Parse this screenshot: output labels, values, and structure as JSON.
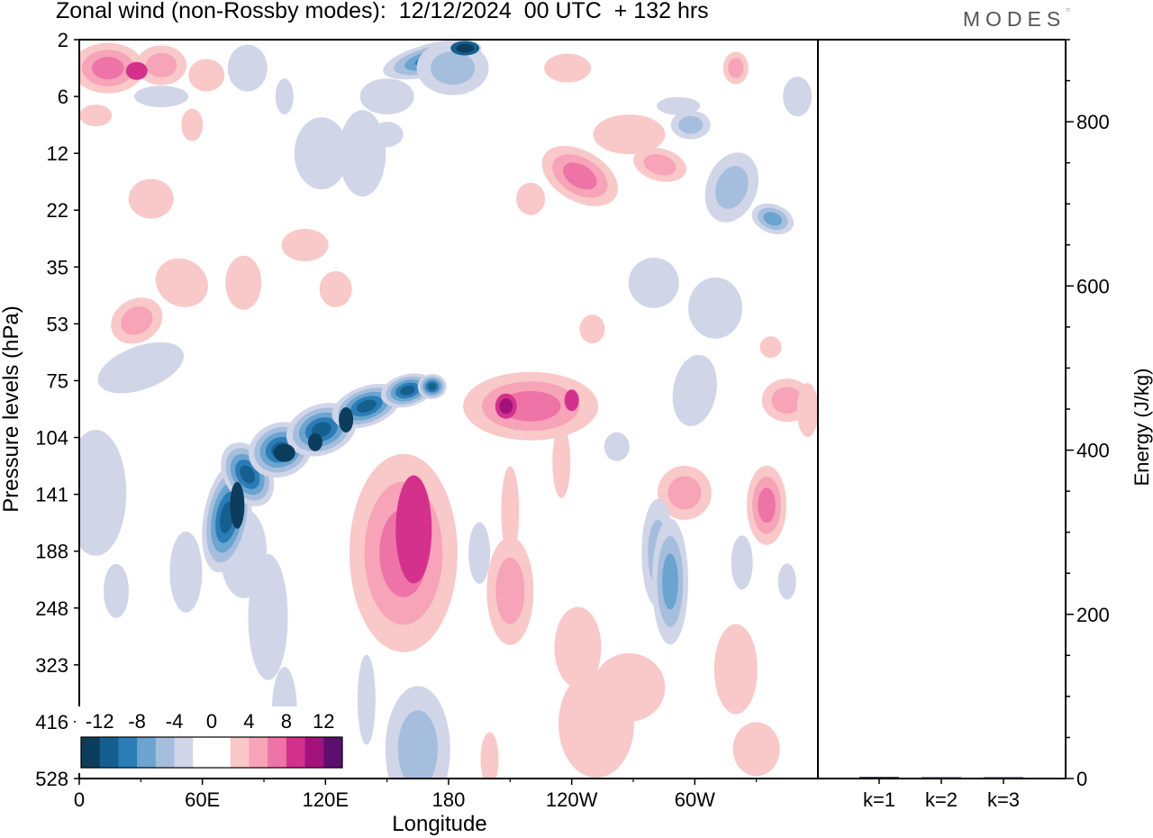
{
  "title": "Zonal wind (non-Rossby modes):  12/12/2024  00 UTC  + 132 hrs",
  "brand": "MODES",
  "chart_data": [
    {
      "type": "heatmap",
      "xlabel": "Longitude",
      "ylabel": "Pressure levels (hPa)",
      "x_ticks": [
        "0",
        "60E",
        "120E",
        "180",
        "120W",
        "60W"
      ],
      "x_tick_degrees": [
        0,
        60,
        120,
        180,
        240,
        300
      ],
      "xlim": [
        0,
        360
      ],
      "y_ticks": [
        "2",
        "6",
        "12",
        "22",
        "35",
        "53",
        "75",
        "104",
        "141",
        "188",
        "248",
        "323",
        "416",
        "528"
      ],
      "y_scale": "pressure levels, inverted (2 hPa top, 528 hPa bottom)",
      "colorbar": {
        "labels": [
          "-12",
          "-8",
          "-4",
          "0",
          "4",
          "8",
          "12"
        ],
        "colors": [
          "#0d3d5c",
          "#155f8f",
          "#2b7db8",
          "#6aa4cf",
          "#a6bedd",
          "#d1d5e8",
          "#ffffff",
          "#ffffff",
          "#f9c8c8",
          "#f7a3b8",
          "#ee73a6",
          "#d4318d",
          "#a3127a",
          "#5c0f6e"
        ]
      },
      "features": [
        {
          "type": "easterly",
          "lon": [
            62,
            185
          ],
          "hPa": [
            75,
            200
          ],
          "peak": -12
        },
        {
          "type": "westerly",
          "lon": [
            140,
            195
          ],
          "hPa": [
            110,
            330
          ],
          "peak": 8
        },
        {
          "type": "westerly",
          "lon": [
            185,
            250
          ],
          "hPa": [
            60,
            115
          ],
          "peak": 8
        },
        {
          "type": "easterly",
          "lon": [
            165,
            200
          ],
          "hPa": [
            2,
            8
          ],
          "peak": -12
        },
        {
          "type": "westerly",
          "lon": [
            10,
            60
          ],
          "hPa": [
            2,
            8
          ],
          "peak": 8
        }
      ]
    },
    {
      "type": "bar",
      "categories": [
        "k=1",
        "k=2",
        "k=3"
      ],
      "values": [
        2,
        1,
        1
      ],
      "ylabel": "Energy (J/kg)",
      "ylim": [
        0,
        900
      ],
      "y_ticks": [
        0,
        200,
        400,
        600,
        800
      ],
      "bar_color": "#2a2a5a"
    }
  ]
}
